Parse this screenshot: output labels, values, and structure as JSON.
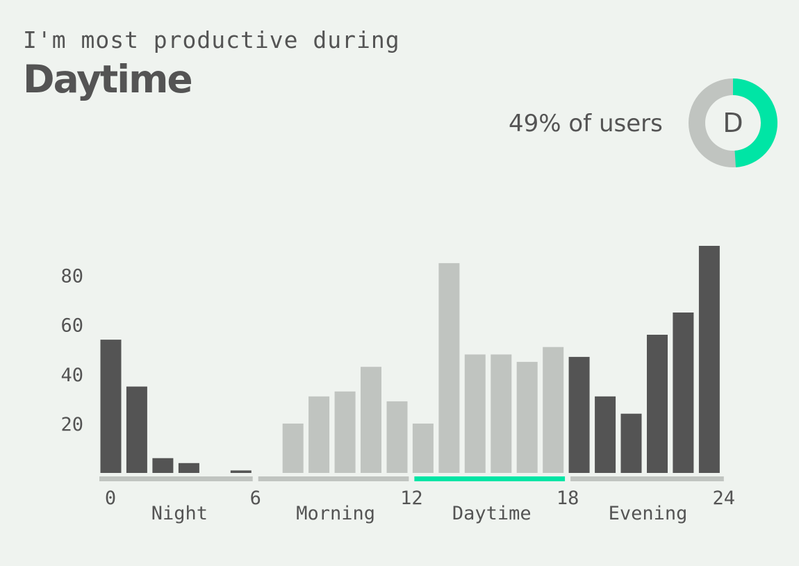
{
  "header": {
    "subtitle": "I'm most productive during",
    "title": "Daytime"
  },
  "summary": {
    "share_text": "49% of users",
    "share_value": 0.49,
    "badge_letter": "D",
    "highlight_color": "#00e5a5",
    "base_color": "#c0c4c0"
  },
  "chart_data": {
    "type": "bar",
    "x": [
      0,
      1,
      2,
      3,
      4,
      5,
      6,
      7,
      8,
      9,
      10,
      11,
      12,
      13,
      14,
      15,
      16,
      17,
      18,
      19,
      20,
      21,
      22,
      23
    ],
    "values": [
      54,
      35,
      6,
      4,
      0,
      1,
      0,
      20,
      31,
      33,
      43,
      29,
      20,
      85,
      48,
      48,
      45,
      51,
      47,
      31,
      24,
      56,
      65,
      92
    ],
    "colors": [
      "#545454",
      "#545454",
      "#545454",
      "#545454",
      "#545454",
      "#545454",
      "#c0c4c0",
      "#c0c4c0",
      "#c0c4c0",
      "#c0c4c0",
      "#c0c4c0",
      "#c0c4c0",
      "#c0c4c0",
      "#c0c4c0",
      "#c0c4c0",
      "#c0c4c0",
      "#c0c4c0",
      "#c0c4c0",
      "#545454",
      "#545454",
      "#545454",
      "#545454",
      "#545454",
      "#545454"
    ],
    "yticks": [
      20,
      40,
      60,
      80
    ],
    "ylim": [
      0,
      95
    ],
    "xticks": [
      0,
      6,
      12,
      18,
      24
    ],
    "periods": [
      {
        "label": "Night",
        "start": 0,
        "end": 6,
        "color": "#c0c4c0"
      },
      {
        "label": "Morning",
        "start": 6,
        "end": 12,
        "color": "#c0c4c0"
      },
      {
        "label": "Daytime",
        "start": 12,
        "end": 18,
        "color": "#00e5a5"
      },
      {
        "label": "Evening",
        "start": 18,
        "end": 24,
        "color": "#c0c4c0"
      }
    ],
    "grid": false,
    "legend": "none"
  }
}
